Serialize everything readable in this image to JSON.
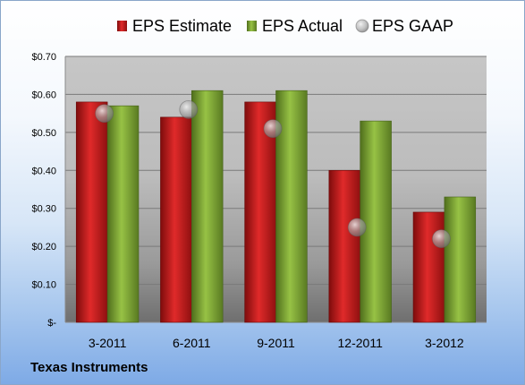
{
  "chart_data": {
    "type": "bar",
    "categories": [
      "3-2011",
      "6-2011",
      "9-2011",
      "12-2011",
      "3-2012"
    ],
    "series": [
      {
        "name": "EPS Estimate",
        "kind": "bar",
        "color": "#cc1f1f",
        "values": [
          0.58,
          0.54,
          0.58,
          0.4,
          0.29
        ]
      },
      {
        "name": "EPS Actual",
        "kind": "bar",
        "color": "#8bb33d",
        "values": [
          0.57,
          0.61,
          0.61,
          0.53,
          0.33
        ]
      },
      {
        "name": "EPS GAAP",
        "kind": "bubble",
        "color": "#9a9a9a",
        "values": [
          0.55,
          0.56,
          0.51,
          0.25,
          0.22
        ]
      }
    ],
    "y_ticks": [
      "$-",
      "$0.10",
      "$0.20",
      "$0.30",
      "$0.40",
      "$0.50",
      "$0.60",
      "$0.70"
    ],
    "ylim": [
      0,
      0.7
    ],
    "grid": true,
    "legend_position": "top"
  },
  "footer": {
    "company": "Texas Instruments"
  }
}
